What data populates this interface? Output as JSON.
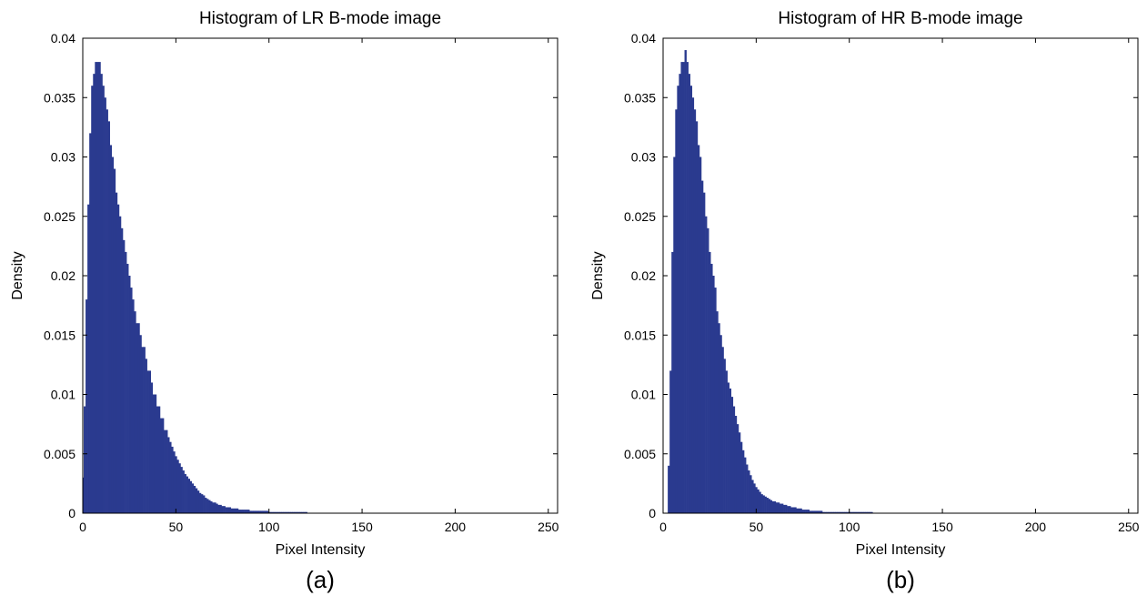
{
  "figure": {
    "panels": [
      {
        "label": "(a)"
      },
      {
        "label": "(b)"
      }
    ]
  },
  "chart_data": [
    {
      "type": "bar",
      "title": "Histogram of LR B-mode image",
      "xlabel": "Pixel Intensity",
      "ylabel": "Density",
      "xlim": [
        0,
        255
      ],
      "ylim": [
        0,
        0.04
      ],
      "xticks": [
        0,
        50,
        100,
        150,
        200,
        250
      ],
      "xtick_labels": [
        "0",
        "50",
        "100",
        "150",
        "200",
        "250"
      ],
      "yticks": [
        0,
        0.005,
        0.01,
        0.015,
        0.02,
        0.025,
        0.03,
        0.035,
        0.04
      ],
      "ytick_labels": [
        "0",
        "0.005",
        "0.01",
        "0.015",
        "0.02",
        "0.025",
        "0.03",
        "0.035",
        "0.04"
      ],
      "grid": false,
      "color": "#2a3a8f",
      "x": [
        0,
        1,
        2,
        3,
        4,
        5,
        6,
        7,
        8,
        9,
        10,
        11,
        12,
        13,
        14,
        15,
        16,
        17,
        18,
        19,
        20,
        21,
        22,
        23,
        24,
        25,
        26,
        27,
        28,
        29,
        30,
        31,
        32,
        33,
        34,
        35,
        36,
        37,
        38,
        39,
        40,
        41,
        42,
        43,
        44,
        45,
        46,
        47,
        48,
        49,
        50,
        51,
        52,
        53,
        54,
        55,
        56,
        57,
        58,
        59,
        60,
        61,
        62,
        63,
        64,
        65,
        66,
        67,
        68,
        69,
        70,
        71,
        72,
        73,
        74,
        75,
        76,
        77,
        78,
        79,
        80,
        81,
        82,
        83,
        84,
        85,
        86,
        87,
        88,
        89,
        90,
        91,
        92,
        93,
        94,
        95,
        96,
        97,
        98,
        99,
        100,
        101,
        102,
        103,
        104,
        105,
        106,
        107,
        108,
        109,
        110,
        111,
        112,
        113,
        114,
        115,
        116,
        117,
        118,
        119,
        120
      ],
      "values": [
        0.003,
        0.009,
        0.018,
        0.026,
        0.032,
        0.036,
        0.037,
        0.038,
        0.038,
        0.038,
        0.037,
        0.036,
        0.035,
        0.034,
        0.033,
        0.031,
        0.03,
        0.029,
        0.027,
        0.026,
        0.025,
        0.024,
        0.023,
        0.022,
        0.021,
        0.02,
        0.019,
        0.018,
        0.017,
        0.016,
        0.016,
        0.015,
        0.014,
        0.014,
        0.013,
        0.012,
        0.012,
        0.011,
        0.01,
        0.01,
        0.009,
        0.009,
        0.008,
        0.008,
        0.007,
        0.007,
        0.0064,
        0.006,
        0.0056,
        0.0052,
        0.0048,
        0.0045,
        0.0042,
        0.0039,
        0.0036,
        0.0033,
        0.0031,
        0.0029,
        0.0027,
        0.0025,
        0.0023,
        0.0021,
        0.0019,
        0.0017,
        0.0016,
        0.0015,
        0.0013,
        0.0012,
        0.0011,
        0.001,
        0.0009,
        0.0009,
        0.0008,
        0.0007,
        0.0007,
        0.0006,
        0.0006,
        0.0005,
        0.0005,
        0.0005,
        0.0004,
        0.0004,
        0.0004,
        0.0004,
        0.0003,
        0.0003,
        0.0003,
        0.0003,
        0.0003,
        0.0003,
        0.0002,
        0.0002,
        0.0002,
        0.0002,
        0.0002,
        0.0002,
        0.0002,
        0.0002,
        0.0002,
        0.0002,
        0.0001,
        0.0001,
        0.0001,
        0.0001,
        0.0001,
        0.0001,
        0.0001,
        0.0001,
        0.0001,
        0.0001,
        0.0001,
        0.0001,
        0.0001,
        0.0001,
        0.0001,
        0.0001,
        0.0001,
        0.0001,
        0.0001,
        0.0001,
        0.0001
      ]
    },
    {
      "type": "bar",
      "title": "Histogram of HR B-mode image",
      "xlabel": "Pixel Intensity",
      "ylabel": "Density",
      "xlim": [
        0,
        255
      ],
      "ylim": [
        0,
        0.04
      ],
      "xticks": [
        0,
        50,
        100,
        150,
        200,
        250
      ],
      "xtick_labels": [
        "0",
        "50",
        "100",
        "150",
        "200",
        "250"
      ],
      "yticks": [
        0,
        0.005,
        0.01,
        0.015,
        0.02,
        0.025,
        0.03,
        0.035,
        0.04
      ],
      "ytick_labels": [
        "0",
        "0.005",
        "0.01",
        "0.015",
        "0.02",
        "0.025",
        "0.03",
        "0.035",
        "0.04"
      ],
      "grid": false,
      "color": "#2a3a8f",
      "x": [
        3,
        4,
        5,
        6,
        7,
        8,
        9,
        10,
        11,
        12,
        13,
        14,
        15,
        16,
        17,
        18,
        19,
        20,
        21,
        22,
        23,
        24,
        25,
        26,
        27,
        28,
        29,
        30,
        31,
        32,
        33,
        34,
        35,
        36,
        37,
        38,
        39,
        40,
        41,
        42,
        43,
        44,
        45,
        46,
        47,
        48,
        49,
        50,
        51,
        52,
        53,
        54,
        55,
        56,
        57,
        58,
        59,
        60,
        61,
        62,
        63,
        64,
        65,
        66,
        67,
        68,
        69,
        70,
        71,
        72,
        73,
        74,
        75,
        76,
        77,
        78,
        79,
        80,
        81,
        82,
        83,
        84,
        85,
        86,
        87,
        88,
        89,
        90,
        91,
        92,
        93,
        94,
        95,
        96,
        97,
        98,
        99,
        100,
        101,
        102,
        103,
        104,
        105,
        106,
        107,
        108,
        109,
        110,
        111,
        112
      ],
      "values": [
        0.004,
        0.012,
        0.022,
        0.03,
        0.034,
        0.036,
        0.037,
        0.038,
        0.038,
        0.039,
        0.038,
        0.037,
        0.036,
        0.035,
        0.034,
        0.033,
        0.031,
        0.03,
        0.028,
        0.027,
        0.025,
        0.024,
        0.022,
        0.021,
        0.02,
        0.019,
        0.017,
        0.016,
        0.015,
        0.014,
        0.013,
        0.012,
        0.011,
        0.0105,
        0.0098,
        0.009,
        0.0082,
        0.0075,
        0.0068,
        0.006,
        0.0053,
        0.0047,
        0.0041,
        0.0036,
        0.0032,
        0.0028,
        0.0025,
        0.0022,
        0.002,
        0.0018,
        0.0016,
        0.0015,
        0.0014,
        0.0013,
        0.0012,
        0.0011,
        0.001,
        0.001,
        0.0009,
        0.0009,
        0.0008,
        0.0008,
        0.0007,
        0.0007,
        0.0006,
        0.0006,
        0.0005,
        0.0005,
        0.0005,
        0.0004,
        0.0004,
        0.0004,
        0.0003,
        0.0003,
        0.0003,
        0.0003,
        0.0002,
        0.0002,
        0.0002,
        0.0002,
        0.0002,
        0.0002,
        0.0002,
        0.0001,
        0.0001,
        0.0001,
        0.0001,
        0.0001,
        0.0001,
        0.0001,
        0.0001,
        0.0001,
        0.0001,
        0.0001,
        0.0001,
        0.0001,
        0.0001,
        0.0001,
        0.0001,
        0.0001,
        0.0001,
        0.0001,
        0.0001,
        0.0001,
        0.0001,
        0.0001,
        0.0001,
        0.0001,
        0.0001,
        0.0001
      ]
    }
  ]
}
